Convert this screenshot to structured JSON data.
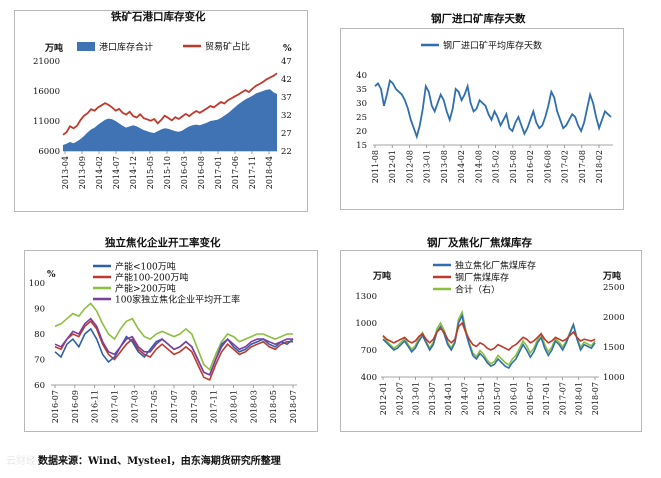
{
  "source": "数据来源：Wind、Mysteel，由东海期货研究所整理",
  "watermark": "云财经",
  "chart_data": [
    {
      "id": "c1",
      "type": "line",
      "title": "铁矿石港口库存变化",
      "ylabel_left": "万吨",
      "ylabel_right": "%",
      "ylim_left": [
        6000,
        21000
      ],
      "ylim_right": [
        22,
        47
      ],
      "yticks_left": [
        6000,
        11000,
        16000,
        21000
      ],
      "yticks_right": [
        22,
        27,
        32,
        37,
        42,
        47
      ],
      "x_tick_labels": [
        "2013-04",
        "2013-09",
        "2014-02",
        "2014-07",
        "2014-12",
        "2015-05",
        "2015-10",
        "2016-03",
        "2016-08",
        "2017-01",
        "2017-06",
        "2017-11",
        "2018-04"
      ],
      "legend_position": "top",
      "colors": {
        "area": "#3f73b4",
        "line": "#c0392b"
      },
      "series": [
        {
          "name": "港口库存合计",
          "kind": "area",
          "axis": "left",
          "values": [
            7000,
            7200,
            7500,
            7300,
            7600,
            8000,
            8500,
            9100,
            9600,
            9900,
            10400,
            10800,
            11200,
            11400,
            11300,
            11000,
            10600,
            10200,
            9900,
            10100,
            10300,
            10100,
            9800,
            9500,
            9300,
            9100,
            9000,
            9300,
            9600,
            9800,
            9700,
            9500,
            9300,
            9200,
            9400,
            9800,
            10100,
            10300,
            10400,
            10300,
            10500,
            10700,
            11000,
            11100,
            11200,
            11500,
            11900,
            12300,
            12800,
            13300,
            13800,
            14200,
            14600,
            14900,
            15200,
            15600,
            15800,
            16000,
            16200,
            16300,
            15800,
            15500
          ]
        },
        {
          "name": "贸易矿占比",
          "kind": "line",
          "axis": "right",
          "values": [
            26.5,
            27.2,
            28.9,
            28.3,
            29.0,
            30.6,
            31.8,
            32.5,
            33.6,
            33.2,
            34.1,
            34.7,
            35.3,
            34.8,
            34.1,
            33.2,
            33.7,
            32.6,
            32.1,
            32.9,
            31.7,
            31.3,
            32.2,
            31.1,
            30.8,
            30.4,
            30.9,
            29.7,
            30.6,
            31.8,
            31.2,
            30.5,
            31.4,
            30.9,
            31.6,
            32.3,
            31.7,
            32.5,
            33.1,
            32.6,
            33.2,
            33.8,
            34.5,
            34.1,
            34.9,
            35.6,
            35.2,
            36.1,
            36.6,
            37.2,
            37.7,
            38.3,
            38.9,
            38.4,
            39.3,
            40.1,
            40.6,
            41.2,
            41.9,
            42.4,
            42.9,
            43.6
          ]
        }
      ]
    },
    {
      "id": "c2",
      "type": "line",
      "title": "钢厂进口矿库存天数",
      "ylim": [
        15,
        40
      ],
      "yticks": [
        15,
        20,
        25,
        30,
        35,
        40
      ],
      "x_tick_labels": [
        "2011-08",
        "2012-01",
        "2012-08",
        "2013-01",
        "2013-08",
        "2014-02",
        "2014-08",
        "2015-02",
        "2015-08",
        "2016-02",
        "2016-08",
        "2017-02",
        "2017-08",
        "2018-02"
      ],
      "legend_position": "top",
      "colors": {
        "line": "#2f6fad"
      },
      "series": [
        {
          "name": "钢厂进口矿平均库存天数",
          "values": [
            36,
            37,
            35,
            29,
            33,
            38,
            37,
            35,
            34,
            33,
            31,
            28,
            24,
            21,
            18,
            22,
            28,
            36,
            34,
            29,
            27,
            30,
            33,
            31,
            27,
            24,
            28,
            35,
            34,
            31,
            33,
            36,
            30,
            27,
            28,
            31,
            30,
            29,
            26,
            24,
            27,
            25,
            22,
            24,
            26,
            21,
            20,
            23,
            25,
            22,
            19,
            21,
            24,
            27,
            23,
            21,
            22,
            25,
            29,
            34,
            32,
            27,
            24,
            21,
            22,
            24,
            26,
            25,
            22,
            20,
            23,
            28,
            33,
            30,
            25,
            21,
            24,
            27,
            26,
            25
          ]
        }
      ]
    },
    {
      "id": "c3",
      "type": "line",
      "title": "独立焦化企业开工率变化",
      "ylabel": "%",
      "ylim": [
        60,
        100
      ],
      "yticks": [
        60,
        70,
        80,
        90,
        100
      ],
      "x_tick_labels": [
        "2016-07",
        "2016-09",
        "2016-11",
        "2017-01",
        "2017-03",
        "2017-05",
        "2017-07",
        "2017-09",
        "2017-11",
        "2018-01",
        "2018-03",
        "2018-05",
        "2018-07"
      ],
      "legend_position": "top-left",
      "colors": {
        "s1": "#2f5fa8",
        "s2": "#c0392b",
        "s3": "#8cbf3f",
        "s4": "#7b3fa0"
      },
      "series": [
        {
          "name": "产能<100万吨",
          "values": [
            73,
            71,
            76,
            78,
            75,
            80,
            82,
            78,
            72,
            69,
            71,
            75,
            79,
            77,
            73,
            71,
            74,
            77,
            78,
            76,
            74,
            75,
            77,
            75,
            70,
            65,
            64,
            70,
            76,
            78,
            75,
            73,
            74,
            76,
            77,
            78,
            76,
            75,
            77,
            76,
            78
          ]
        },
        {
          "name": "产能100-200万吨",
          "values": [
            75,
            74,
            78,
            80,
            79,
            83,
            85,
            82,
            76,
            72,
            70,
            73,
            76,
            78,
            74,
            72,
            71,
            74,
            76,
            74,
            72,
            73,
            75,
            73,
            68,
            63,
            62,
            68,
            73,
            76,
            74,
            72,
            73,
            75,
            76,
            77,
            75,
            74,
            76,
            77,
            77
          ]
        },
        {
          "name": "产能>200万吨",
          "values": [
            83,
            84,
            86,
            88,
            87,
            90,
            92,
            89,
            84,
            80,
            78,
            82,
            85,
            86,
            82,
            79,
            78,
            80,
            81,
            80,
            79,
            80,
            82,
            80,
            74,
            68,
            66,
            72,
            77,
            80,
            79,
            77,
            78,
            79,
            80,
            80,
            79,
            78,
            79,
            80,
            80
          ]
        },
        {
          "name": "100家独立焦化企业平均开工率",
          "values": [
            76,
            75,
            78,
            81,
            80,
            84,
            86,
            83,
            77,
            73,
            72,
            75,
            78,
            79,
            75,
            73,
            73,
            76,
            78,
            76,
            74,
            75,
            77,
            75,
            70,
            65,
            64,
            70,
            75,
            78,
            76,
            74,
            75,
            77,
            78,
            78,
            77,
            76,
            77,
            78,
            78
          ]
        }
      ]
    },
    {
      "id": "c4",
      "type": "line",
      "title": "钢厂及焦化厂焦煤库存",
      "ylabel_left": "万吨",
      "ylabel_right": "万吨",
      "ylim_left": [
        400,
        1400
      ],
      "ylim_right": [
        1000,
        2500
      ],
      "yticks_left": [
        400,
        700,
        1000,
        1300
      ],
      "yticks_right": [
        1000,
        1500,
        2000,
        2500
      ],
      "x_tick_labels": [
        "2012-01",
        "2012-07",
        "2013-01",
        "2013-07",
        "2014-01",
        "2014-07",
        "2015-01",
        "2015-07",
        "2016-01",
        "2016-07",
        "2017-01",
        "2017-07",
        "2018-01",
        "2018-07"
      ],
      "legend_position": "top",
      "colors": {
        "s1": "#2f6fad",
        "s2": "#c0392b",
        "s3": "#8cbf3f"
      },
      "series": [
        {
          "name": "独立焦化厂焦煤库存",
          "axis": "left",
          "values": [
            820,
            780,
            740,
            700,
            720,
            760,
            800,
            740,
            680,
            720,
            800,
            860,
            780,
            700,
            760,
            900,
            960,
            880,
            760,
            700,
            780,
            1000,
            1080,
            900,
            760,
            640,
            600,
            660,
            620,
            560,
            520,
            540,
            600,
            560,
            520,
            500,
            560,
            600,
            680,
            760,
            700,
            620,
            680,
            780,
            840,
            720,
            640,
            700,
            800,
            760,
            700,
            780,
            880,
            980,
            820,
            700,
            760,
            740,
            720,
            780
          ]
        },
        {
          "name": "钢厂焦煤库存",
          "axis": "left",
          "values": [
            860,
            820,
            800,
            780,
            800,
            820,
            840,
            800,
            780,
            800,
            850,
            880,
            820,
            780,
            820,
            900,
            940,
            900,
            820,
            780,
            820,
            960,
            1000,
            900,
            820,
            760,
            740,
            780,
            760,
            720,
            700,
            720,
            760,
            740,
            720,
            700,
            740,
            760,
            800,
            840,
            820,
            780,
            800,
            840,
            880,
            820,
            780,
            800,
            840,
            820,
            800,
            820,
            860,
            900,
            840,
            800,
            820,
            810,
            800,
            820
          ]
        },
        {
          "name": "合计（右）",
          "axis": "right",
          "values": [
            1680,
            1600,
            1540,
            1480,
            1520,
            1580,
            1640,
            1540,
            1460,
            1520,
            1650,
            1740,
            1600,
            1480,
            1580,
            1800,
            1900,
            1780,
            1580,
            1480,
            1600,
            1960,
            2080,
            1800,
            1580,
            1400,
            1340,
            1440,
            1380,
            1280,
            1220,
            1260,
            1360,
            1300,
            1240,
            1200,
            1300,
            1360,
            1480,
            1600,
            1520,
            1400,
            1480,
            1620,
            1720,
            1540,
            1420,
            1500,
            1640,
            1580,
            1500,
            1600,
            1740,
            1880,
            1660,
            1500,
            1580,
            1550,
            1520,
            1600
          ]
        }
      ]
    }
  ]
}
